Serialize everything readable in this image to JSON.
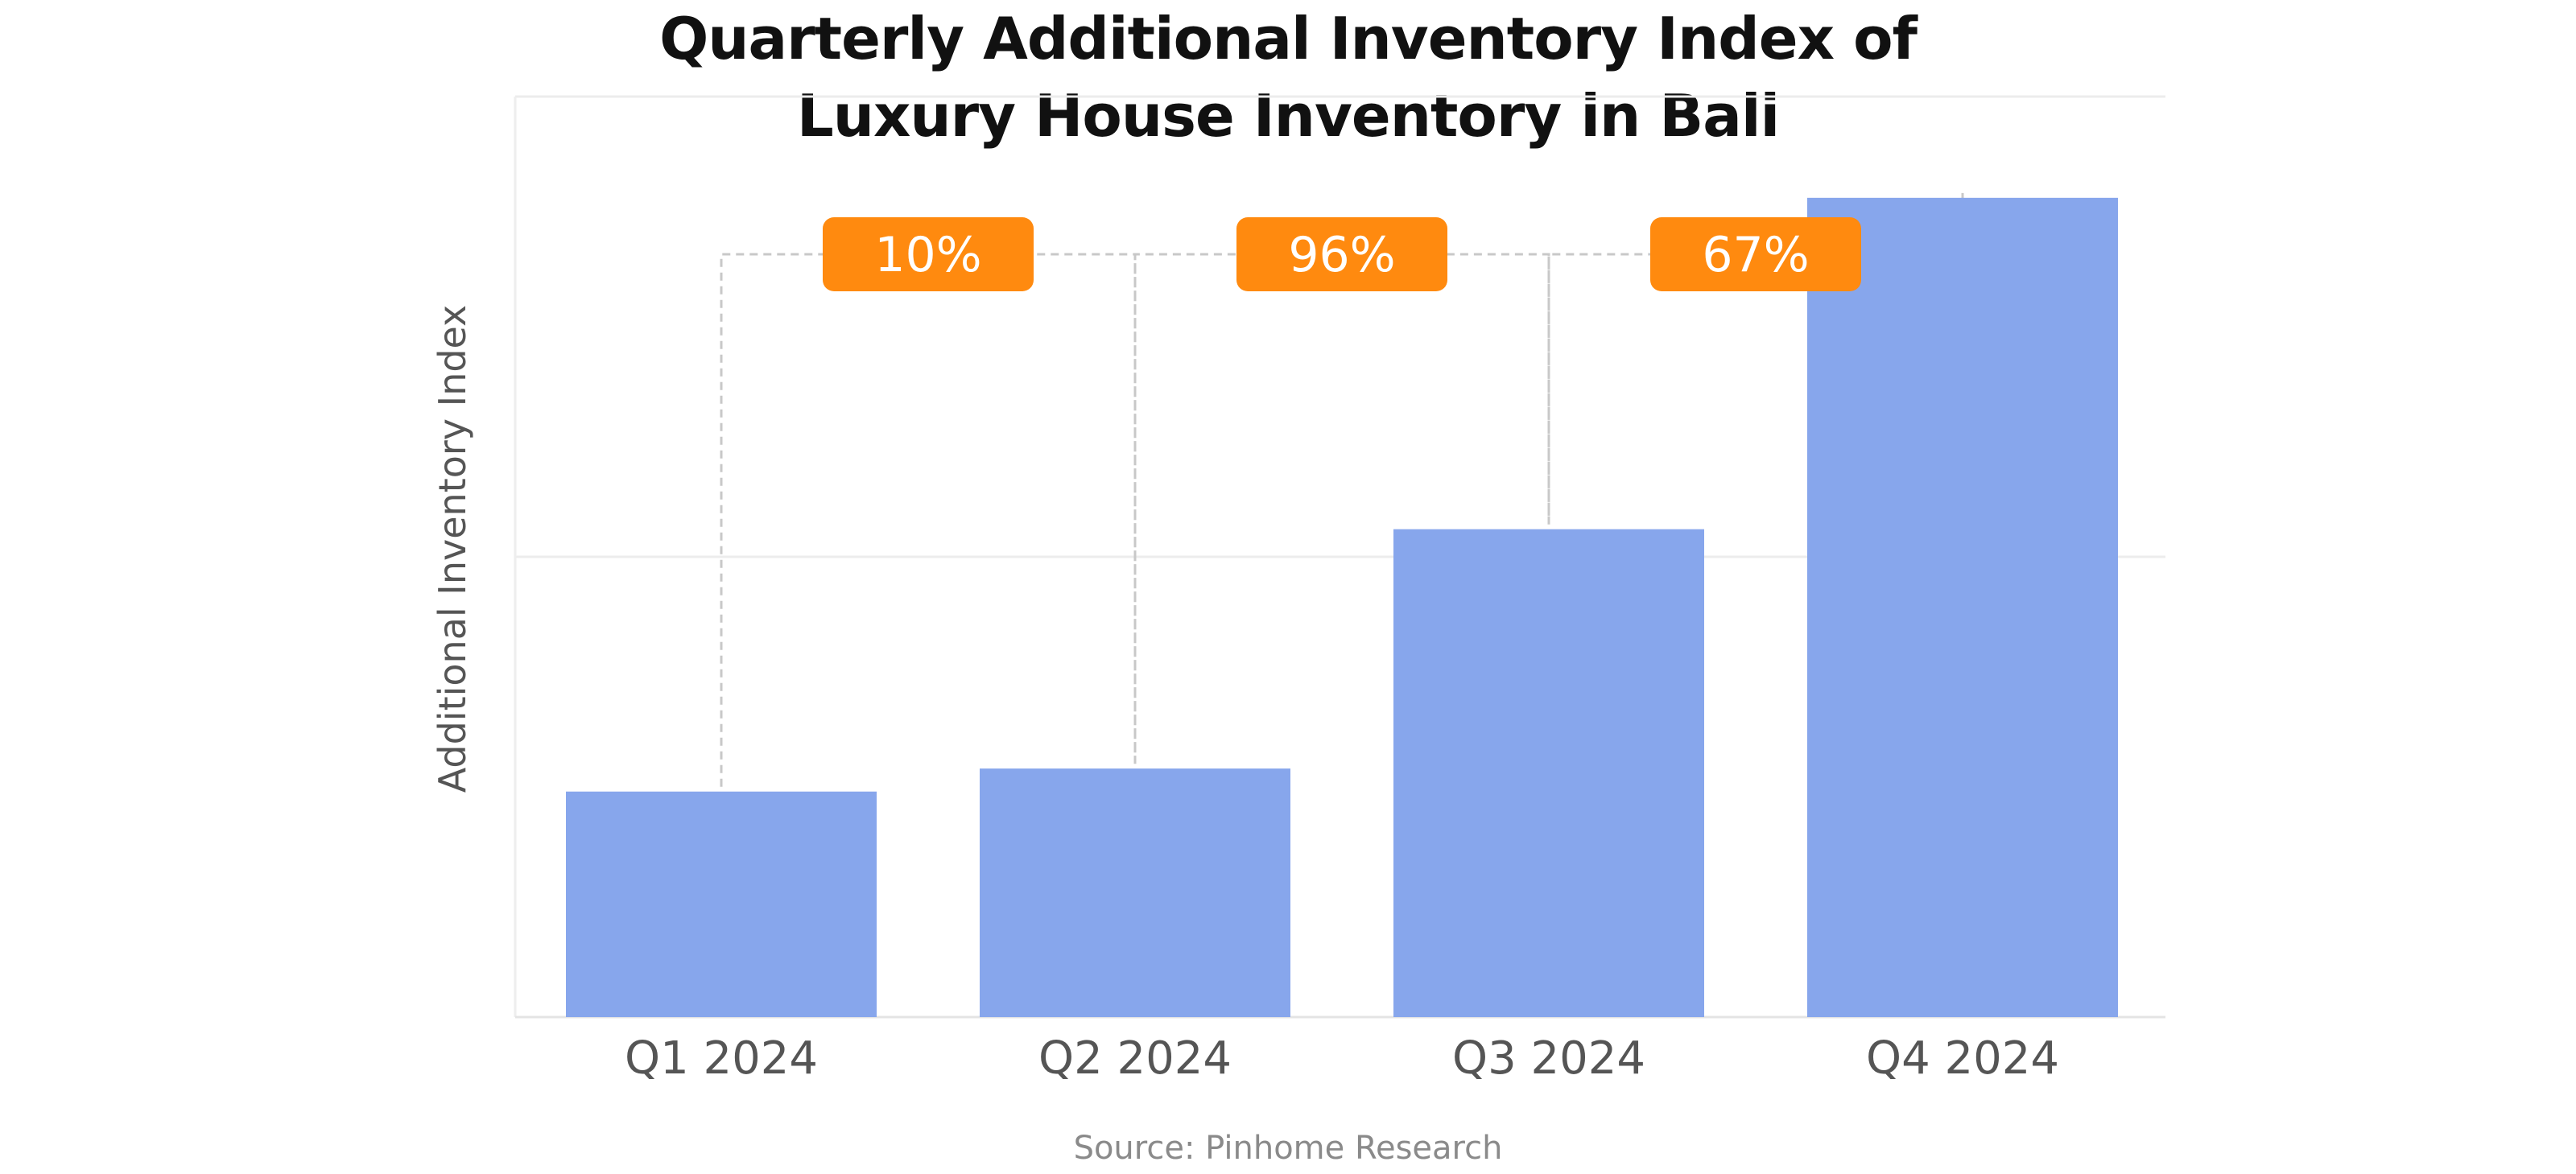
{
  "chart_data": {
    "type": "bar",
    "title_lines": [
      "Quarterly Additional Inventory Index of",
      "Luxury House Inventory in Bali"
    ],
    "xlabel": "",
    "ylabel": "Additional Inventory Index",
    "categories": [
      "Q1 2024",
      "Q2 2024",
      "Q3 2024",
      "Q4 2024"
    ],
    "values": [
      0.49,
      0.54,
      1.06,
      1.78
    ],
    "ylim": [
      0,
      2
    ],
    "grid": true,
    "y_tick_labels_shown": false,
    "change_annotations": [
      {
        "from": "Q1 2024",
        "to": "Q2 2024",
        "label": "10%"
      },
      {
        "from": "Q2 2024",
        "to": "Q3 2024",
        "label": "96%"
      },
      {
        "from": "Q3 2024",
        "to": "Q4 2024",
        "label": "67%"
      }
    ],
    "colors": {
      "bar": "#87a6ec",
      "annotation_badge": "#ff8a0f",
      "annotation_text": "#ffffff",
      "connector": "#c8c8c8",
      "grid": "#ececec"
    }
  },
  "source": "Source: Pinhome Research"
}
